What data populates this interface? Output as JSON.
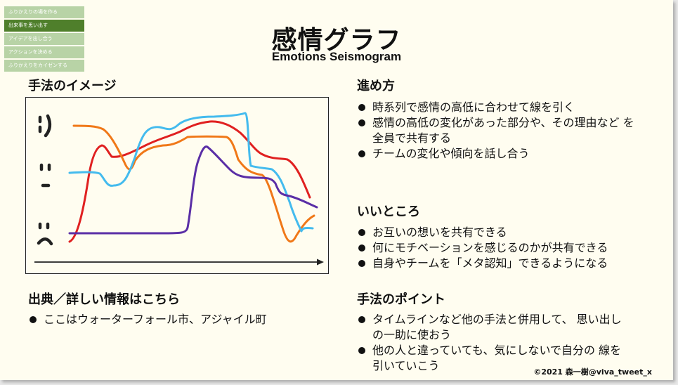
{
  "nav": {
    "items": [
      {
        "label": "ふりかえりの場を作る",
        "active": false
      },
      {
        "label": "出来事を思い出す",
        "active": true
      },
      {
        "label": "アイデアを出し合う",
        "active": false
      },
      {
        "label": "アクションを決める",
        "active": false
      },
      {
        "label": "ふりかえりをカイゼンする",
        "active": false
      }
    ]
  },
  "title": "感情グラフ",
  "subtitle": "Emotions Seismogram",
  "image_section": {
    "heading": "手法のイメージ",
    "faces": {
      "happy": ": )",
      "neutral": ": |",
      "sad": ": ("
    },
    "line_colors": {
      "red": "#e02020",
      "orange": "#f07818",
      "blue": "#44bbee",
      "purple": "#5a2ea6"
    }
  },
  "howto": {
    "heading": "進め方",
    "items": [
      "時系列で感情の高低に合わせて線を引く",
      "感情の高低の変化があった部分や、その理由など を全員で共有する",
      "チームの変化や傾向を話し合う"
    ]
  },
  "good": {
    "heading": "いいところ",
    "items": [
      "お互いの想いを共有できる",
      "何にモチベーションを感じるのかが共有できる",
      "自身やチームを「メタ認知」できるようになる"
    ]
  },
  "source": {
    "heading": "出典／詳しい情報はこちら",
    "items": [
      "ここはウォーターフォール市、アジャイル町"
    ]
  },
  "points": {
    "heading": "手法のポイント",
    "items": [
      "タイムラインなど他の手法と併用して、 思い出しの一助に使おう",
      "他の人と違っていても、気にしないで自分の 線を引いていこう"
    ]
  },
  "copyright": "©2021 森一樹@viva_tweet_x"
}
